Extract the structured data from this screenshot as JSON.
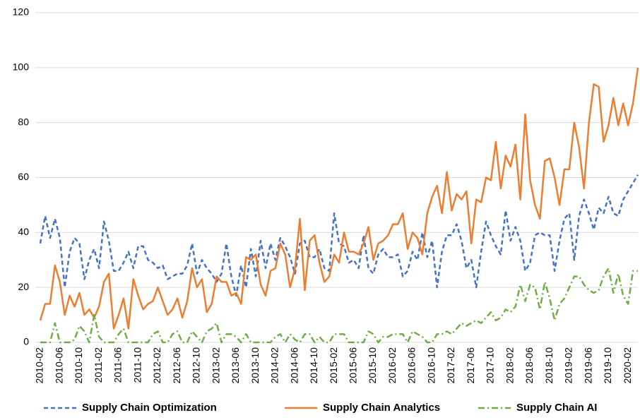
{
  "chart_data": {
    "type": "line",
    "categories": [
      "2010-02",
      null,
      null,
      null,
      "2010-06",
      null,
      null,
      null,
      "2010-10",
      null,
      null,
      null,
      "2011-02",
      null,
      null,
      null,
      "2011-06",
      null,
      null,
      null,
      "2011-10",
      null,
      null,
      null,
      "2012-02",
      null,
      null,
      null,
      "2012-06",
      null,
      null,
      null,
      "2012-10",
      null,
      null,
      null,
      "2013-02",
      null,
      null,
      null,
      "2013-06",
      null,
      null,
      null,
      "2013-10",
      null,
      null,
      null,
      "2014-02",
      null,
      null,
      null,
      "2014-06",
      null,
      null,
      null,
      "2014-10",
      null,
      null,
      null,
      "2015-02",
      null,
      null,
      null,
      "2015-06",
      null,
      null,
      null,
      "2015-10",
      null,
      null,
      null,
      "2016-02",
      null,
      null,
      null,
      "2016-06",
      null,
      null,
      null,
      "2016-10",
      null,
      null,
      null,
      "2017-02",
      null,
      null,
      null,
      "2017-06",
      null,
      null,
      null,
      "2017-10",
      null,
      null,
      null,
      "2018-02",
      null,
      null,
      null,
      "2018-06",
      null,
      null,
      null,
      "2018-10",
      null,
      null,
      null,
      "2019-02",
      null,
      null,
      null,
      "2019-06",
      null,
      null,
      null,
      "2019-10",
      null,
      null,
      null,
      "2020-02",
      null,
      null
    ],
    "series": [
      {
        "name": "Supply Chain Optimization",
        "color": "#4472c4",
        "line_style": "dashed",
        "values": [
          36,
          46,
          38,
          45,
          38,
          20,
          33,
          38,
          36,
          23,
          30,
          34,
          27,
          44,
          37,
          26,
          26,
          29,
          33,
          27,
          35,
          35,
          30,
          29,
          27,
          28,
          23,
          24,
          25,
          25,
          28,
          36,
          25,
          30,
          27,
          25,
          22,
          25,
          36,
          24,
          17,
          28,
          20,
          34,
          24,
          37,
          27,
          36,
          30,
          38,
          35,
          31,
          25,
          36,
          37,
          31,
          31,
          34,
          27,
          26,
          47,
          36,
          35,
          29,
          30,
          27,
          39,
          27,
          25,
          32,
          34,
          31,
          31,
          32,
          24,
          26,
          33,
          30,
          40,
          31,
          37,
          20,
          33,
          39,
          39,
          43,
          37,
          27,
          30,
          20,
          33,
          44,
          39,
          35,
          32,
          48,
          37,
          42,
          37,
          26,
          29,
          39,
          40,
          39,
          39,
          26,
          37,
          45,
          47,
          30,
          46,
          52,
          47,
          41,
          49,
          47,
          53,
          47,
          46,
          52,
          55,
          58,
          61
        ]
      },
      {
        "name": "Supply Chain Analytics",
        "color": "#ed7d31",
        "line_style": "solid",
        "values": [
          8,
          14,
          14,
          28,
          22,
          10,
          17,
          13,
          18,
          10,
          12,
          9,
          13,
          22,
          25,
          5,
          10,
          16,
          5,
          23,
          17,
          12,
          14,
          15,
          20,
          15,
          10,
          12,
          16,
          9,
          15,
          27,
          20,
          23,
          11,
          14,
          24,
          22,
          22,
          17,
          18,
          14,
          31,
          30,
          32,
          21,
          17,
          26,
          27,
          36,
          32,
          20,
          27,
          45,
          19,
          37,
          39,
          29,
          22,
          24,
          32,
          29,
          40,
          33,
          33,
          32,
          36,
          42,
          30,
          36,
          37,
          39,
          43,
          43,
          47,
          34,
          40,
          38,
          32,
          47,
          53,
          57,
          47,
          62,
          48,
          54,
          52,
          55,
          36,
          52,
          51,
          60,
          59,
          73,
          56,
          68,
          64,
          72,
          52,
          83,
          59,
          50,
          45,
          66,
          67,
          60,
          50,
          63,
          63,
          80,
          71,
          56,
          80,
          94,
          93,
          73,
          79,
          89,
          79,
          87,
          79,
          87,
          100
        ]
      },
      {
        "name": "Supply Chain AI",
        "color": "#70ad47",
        "line_style": "dashdot",
        "values": [
          0,
          0,
          0,
          7,
          0,
          0,
          0,
          1,
          6,
          4,
          0,
          10,
          2,
          0,
          0,
          0,
          3,
          5,
          0,
          0,
          0,
          0,
          0,
          3,
          4,
          0,
          0,
          3,
          4,
          0,
          0,
          4,
          2,
          0,
          4,
          5,
          7,
          0,
          3,
          3,
          2,
          0,
          3,
          0,
          0,
          0,
          0,
          0,
          2,
          3,
          0,
          3,
          1,
          0,
          3,
          3,
          0,
          2,
          0,
          0,
          3,
          3,
          3,
          0,
          0,
          0,
          0,
          4,
          3,
          0,
          2,
          2,
          3,
          3,
          3,
          0,
          4,
          3,
          2,
          0,
          0,
          3,
          3,
          4,
          3,
          5,
          7,
          6,
          7,
          8,
          7,
          9,
          11,
          8,
          9,
          12,
          11,
          13,
          21,
          15,
          21,
          20,
          12,
          22,
          16,
          8,
          14,
          16,
          20,
          24,
          24,
          21,
          19,
          18,
          19,
          24,
          27,
          18,
          25,
          17,
          14,
          26,
          26
        ]
      }
    ],
    "ylim": [
      0,
      120
    ],
    "yticks": [
      0,
      20,
      40,
      60,
      80,
      100,
      120
    ],
    "grid": true,
    "legend": "bottom"
  }
}
